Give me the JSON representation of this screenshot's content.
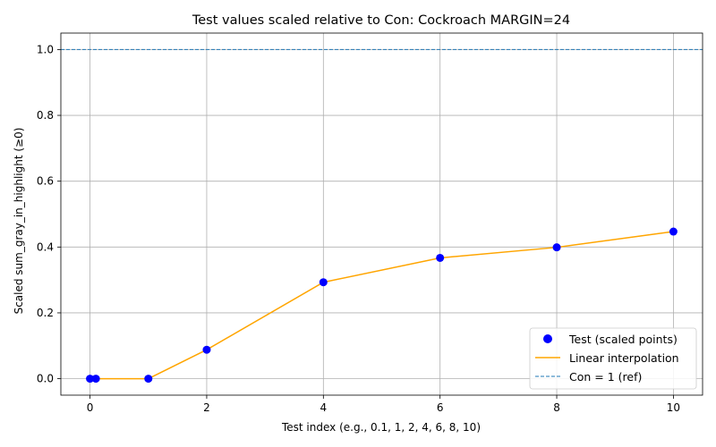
{
  "chart_data": {
    "type": "line",
    "title": "Test values scaled relative to Con: Cockroach MARGIN=24",
    "xlabel": "Test index (e.g., 0.1, 1, 2, 4, 6, 8, 10)",
    "ylabel": "Scaled sum_gray_in_highlight (≥0)",
    "xlim": [
      -0.5,
      10.5
    ],
    "ylim": [
      -0.05,
      1.05
    ],
    "xticks": [
      0,
      2,
      4,
      6,
      8,
      10
    ],
    "yticks": [
      0.0,
      0.2,
      0.4,
      0.6,
      0.8,
      1.0
    ],
    "xtick_labels": [
      "0",
      "2",
      "4",
      "6",
      "8",
      "10"
    ],
    "ytick_labels": [
      "0.0",
      "0.2",
      "0.4",
      "0.6",
      "0.8",
      "1.0"
    ],
    "grid": true,
    "legend_position": "bottom-right",
    "series": [
      {
        "name": "Test (scaled points)",
        "kind": "scatter",
        "color": "#0000ff",
        "x": [
          0,
          0.1,
          1,
          2,
          4,
          6,
          8,
          10
        ],
        "y": [
          0.0,
          0.0,
          0.0,
          0.088,
          0.293,
          0.367,
          0.399,
          0.447
        ]
      },
      {
        "name": "Linear interpolation",
        "kind": "line",
        "color": "#ffa500",
        "x": [
          0,
          0.1,
          1,
          2,
          4,
          6,
          8,
          10
        ],
        "y": [
          0.0,
          0.0,
          0.0,
          0.088,
          0.293,
          0.367,
          0.399,
          0.447
        ]
      },
      {
        "name": "Con = 1 (ref)",
        "kind": "hline",
        "color": "#1f77b4",
        "y": 1.0
      }
    ]
  }
}
